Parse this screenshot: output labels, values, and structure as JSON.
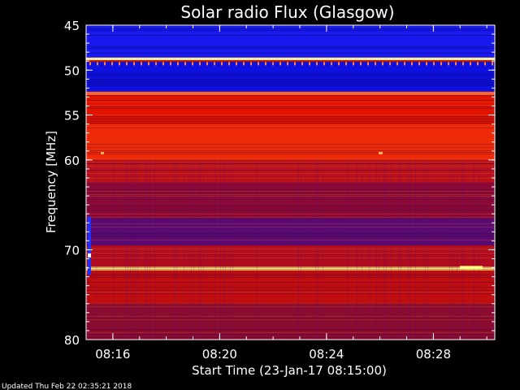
{
  "chart_data": {
    "type": "heatmap",
    "title": "Solar radio Flux (Glasgow)",
    "xlabel": "Start Time (23-Jan-17 08:15:00)",
    "ylabel": "Frequency [MHz]",
    "x_ticks": [
      "08:16",
      "08:20",
      "08:24",
      "08:28"
    ],
    "x_tick_minutes": [
      16,
      20,
      24,
      28
    ],
    "xlim_minutes": [
      15,
      30.3
    ],
    "y_ticks": [
      45,
      50,
      55,
      60,
      70,
      80
    ],
    "ylim": [
      45,
      80
    ],
    "bands": [
      {
        "from": 45.0,
        "to": 48.6,
        "color": "#1a1aee"
      },
      {
        "from": 48.6,
        "to": 48.9,
        "color": "#ffe9a0"
      },
      {
        "from": 48.9,
        "to": 49.1,
        "color": "#ee2200"
      },
      {
        "from": 49.1,
        "to": 52.4,
        "color": "#1010e0"
      },
      {
        "from": 52.4,
        "to": 52.8,
        "color": "#ff6030"
      },
      {
        "from": 52.8,
        "to": 56.0,
        "color": "#e01400"
      },
      {
        "from": 56.0,
        "to": 60.0,
        "color": "#ee2a08"
      },
      {
        "from": 60.0,
        "to": 62.5,
        "color": "#b8101c"
      },
      {
        "from": 62.5,
        "to": 66.5,
        "color": "#8c0a38"
      },
      {
        "from": 66.5,
        "to": 69.5,
        "color": "#5a0a70"
      },
      {
        "from": 69.5,
        "to": 71.9,
        "color": "#b00c20"
      },
      {
        "from": 71.9,
        "to": 72.3,
        "color": "#ffe070"
      },
      {
        "from": 72.3,
        "to": 76.0,
        "color": "#c00e10"
      },
      {
        "from": 76.0,
        "to": 80.0,
        "color": "#8a0c30"
      }
    ],
    "colors": {
      "background": "#000000",
      "axis": "#ffffff"
    }
  },
  "footer": "Updated Thu Feb 22 02:35:21 2018"
}
